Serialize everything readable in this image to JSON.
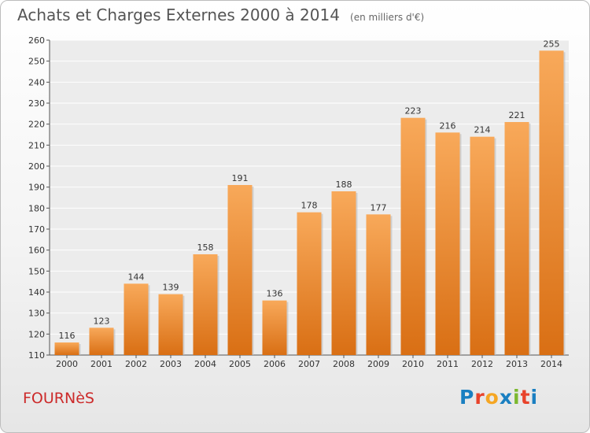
{
  "header": {
    "title": "Achats et Charges Externes 2000 à 2014",
    "subtitle": "(en milliers d'€)"
  },
  "footer": {
    "commune": "FOURNèS",
    "logo_text": "Proxiti",
    "logo_colors": [
      "#1a7fc1",
      "#e8432b",
      "#f5a623",
      "#1a7fc1",
      "#7cb82f",
      "#e8432b",
      "#1a7fc1"
    ]
  },
  "chart_data": {
    "type": "bar",
    "title": "Achats et Charges Externes 2000 à 2014",
    "subtitle": "(en milliers d'€)",
    "xlabel": "",
    "ylabel": "",
    "categories": [
      "2000",
      "2001",
      "2002",
      "2003",
      "2004",
      "2005",
      "2006",
      "2007",
      "2008",
      "2009",
      "2010",
      "2011",
      "2012",
      "2013",
      "2014"
    ],
    "values": [
      116,
      123,
      144,
      139,
      158,
      191,
      136,
      178,
      188,
      177,
      223,
      216,
      214,
      221,
      255
    ],
    "ylim": [
      110,
      260
    ],
    "yticks": [
      110,
      120,
      130,
      140,
      150,
      160,
      170,
      180,
      190,
      200,
      210,
      220,
      230,
      240,
      250,
      260
    ],
    "grid": true,
    "bar_color_top": "#f8a95a",
    "bar_color_bottom": "#d96f14"
  }
}
